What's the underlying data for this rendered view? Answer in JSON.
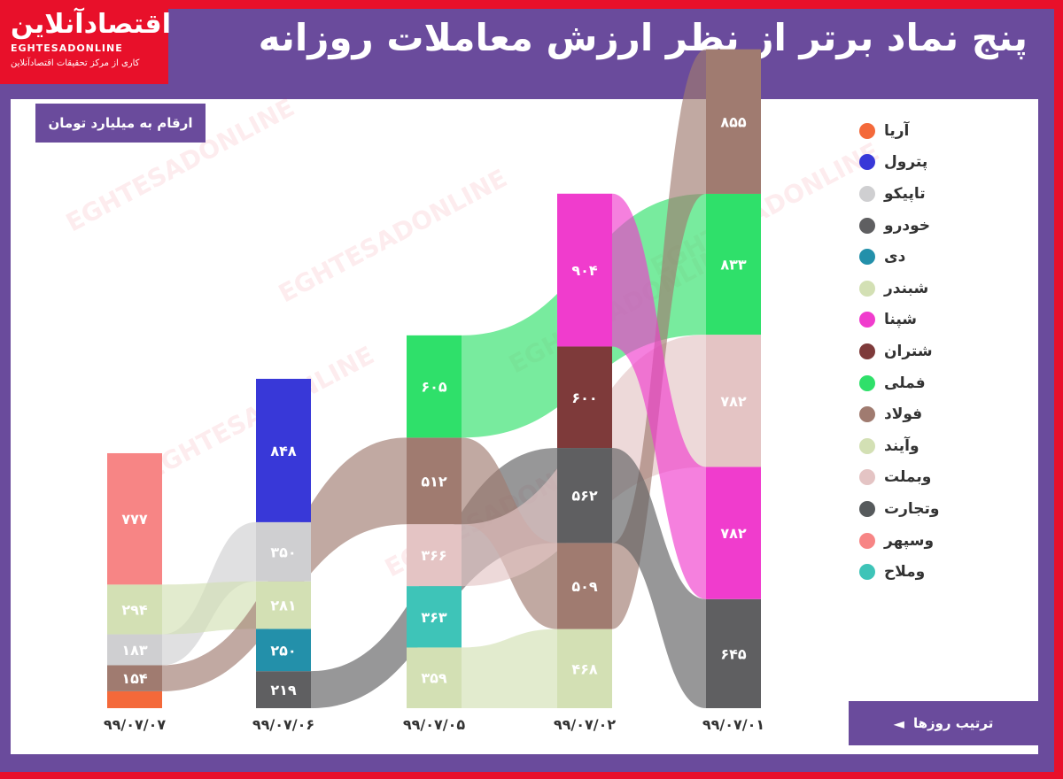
{
  "header": {
    "title": "پنج نماد برتر از نظر ارزش معاملات روزانه",
    "logo_text": "اقتصادآنلاین",
    "logo_latin": "EGHTESADONLINE",
    "logo_tagline": "کاری از مرکز تحقیقات اقتصادآنلاین"
  },
  "unit_label": "ارقام به میلیارد تومان",
  "order_label": "ترتیب روزها",
  "order_arrow": "◄",
  "colors": {
    "frame": "#e8102a",
    "band": "#6a4b9c",
    "panel": "#ffffff"
  },
  "chart_data": {
    "type": "bar",
    "subtype": "ranked stacked bars with ribbons",
    "categories": [
      "۹۹/۰۷/۰۷",
      "۹۹/۰۷/۰۶",
      "۹۹/۰۷/۰۵",
      "۹۹/۰۷/۰۲",
      "۹۹/۰۷/۰۱"
    ],
    "legend": [
      {
        "name": "آریا",
        "color": "#f4693a"
      },
      {
        "name": "پترول",
        "color": "#3838d8"
      },
      {
        "name": "تاپیکو",
        "color": "#cfcfd1"
      },
      {
        "name": "خودرو",
        "color": "#5f5f61"
      },
      {
        "name": "دی",
        "color": "#2390aa"
      },
      {
        "name": "شبندر",
        "color": "#d3e0b4"
      },
      {
        "name": "شپنا",
        "color": "#f03ccd"
      },
      {
        "name": "شتران",
        "color": "#7e3a3a"
      },
      {
        "name": "فملی",
        "color": "#2fe06a"
      },
      {
        "name": "فولاد",
        "color": "#a07b70"
      },
      {
        "name": "وآیند",
        "color": "#d3e0b4"
      },
      {
        "name": "وبملت",
        "color": "#e4c4c4"
      },
      {
        "name": "وتجارت",
        "color": "#565a5c"
      },
      {
        "name": "وسپهر",
        "color": "#f78585"
      },
      {
        "name": "وملاح",
        "color": "#3ec4b8"
      }
    ],
    "days": [
      {
        "date": "۹۹/۰۷/۰۷",
        "segments": [
          {
            "symbol": "آریا",
            "value": 100,
            "label": ""
          },
          {
            "symbol": "فولاد",
            "value": 154,
            "label": "۱۵۴"
          },
          {
            "symbol": "تاپیکو",
            "value": 183,
            "label": "۱۸۳"
          },
          {
            "symbol": "وآیند",
            "value": 294,
            "label": "۲۹۴"
          },
          {
            "symbol": "وسپهر",
            "value": 777,
            "label": "۷۷۷"
          }
        ]
      },
      {
        "date": "۹۹/۰۷/۰۶",
        "segments": [
          {
            "symbol": "خودرو",
            "value": 219,
            "label": "۲۱۹"
          },
          {
            "symbol": "دی",
            "value": 250,
            "label": "۲۵۰"
          },
          {
            "symbol": "وآیند",
            "value": 281,
            "label": "۲۸۱"
          },
          {
            "symbol": "تاپیکو",
            "value": 350,
            "label": "۳۵۰"
          },
          {
            "symbol": "پترول",
            "value": 848,
            "label": "۸۴۸"
          }
        ]
      },
      {
        "date": "۹۹/۰۷/۰۵",
        "segments": [
          {
            "symbol": "شبندر",
            "value": 359,
            "label": "۳۵۹"
          },
          {
            "symbol": "وملاح",
            "value": 363,
            "label": "۳۶۳"
          },
          {
            "symbol": "وبملت",
            "value": 366,
            "label": "۳۶۶"
          },
          {
            "symbol": "فولاد",
            "value": 512,
            "label": "۵۱۲"
          },
          {
            "symbol": "فملی",
            "value": 605,
            "label": "۶۰۵"
          }
        ]
      },
      {
        "date": "۹۹/۰۷/۰۲",
        "segments": [
          {
            "symbol": "شبندر",
            "value": 468,
            "label": "۴۶۸"
          },
          {
            "symbol": "فولاد",
            "value": 509,
            "label": "۵۰۹"
          },
          {
            "symbol": "خودرو",
            "value": 562,
            "label": "۵۶۲"
          },
          {
            "symbol": "شتران",
            "value": 600,
            "label": "۶۰۰"
          },
          {
            "symbol": "شپنا",
            "value": 904,
            "label": "۹۰۴"
          }
        ]
      },
      {
        "date": "۹۹/۰۷/۰۱",
        "segments": [
          {
            "symbol": "خودرو",
            "value": 645,
            "label": "۶۴۵"
          },
          {
            "symbol": "شپنا",
            "value": 782,
            "label": "۷۸۲"
          },
          {
            "symbol": "وبملت",
            "value": 782,
            "label": "۷۸۲"
          },
          {
            "symbol": "فملی",
            "value": 833,
            "label": "۸۳۳"
          },
          {
            "symbol": "فولاد",
            "value": 855,
            "label": "۸۵۵"
          }
        ]
      }
    ]
  }
}
